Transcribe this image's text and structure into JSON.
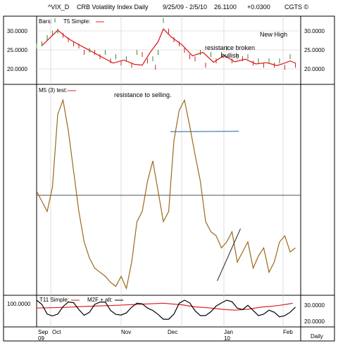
{
  "header": {
    "symbol": "^VIX_D",
    "title": "CRB Volatility Index Daily",
    "date_range": "9/25/09 - 2/5/10",
    "last": "26.1100",
    "change": "+0.0300",
    "source": "CGTS ©"
  },
  "colors": {
    "frame": "#000000",
    "grid": "#c8c8c8",
    "price_up": "#2e8b2e",
    "price_down": "#cc2222",
    "ma_line": "#e02020",
    "osc_line": "#9a6a1c",
    "osc_level": "#555555",
    "trend_line": "#222222",
    "resistance_line": "#1f5fa8"
  },
  "chart_data": [
    {
      "id": "price",
      "type": "line",
      "legend": [
        "Bars:",
        "T5 Simple:"
      ],
      "y_ticks": [
        "30.0000",
        "25.0000",
        "20.0000"
      ],
      "ylim": [
        16.5,
        32.5
      ],
      "xlim": [
        0,
        100
      ],
      "bars": [
        [
          0,
          25.5
        ],
        [
          2,
          26
        ],
        [
          4,
          27.5
        ],
        [
          6,
          28.5
        ],
        [
          8,
          29
        ],
        [
          10,
          28
        ],
        [
          12,
          27
        ],
        [
          14,
          26
        ],
        [
          16,
          25.5
        ],
        [
          18,
          24
        ],
        [
          20,
          24.5
        ],
        [
          22,
          24
        ],
        [
          24,
          23
        ],
        [
          26,
          24
        ],
        [
          28,
          22
        ],
        [
          30,
          23
        ],
        [
          32,
          21.5
        ],
        [
          34,
          22.5
        ],
        [
          36,
          21
        ],
        [
          38,
          24
        ],
        [
          40,
          23.5
        ],
        [
          42,
          22
        ],
        [
          44,
          22.5
        ],
        [
          45,
          20.5
        ],
        [
          46,
          24
        ],
        [
          48,
          31.5
        ],
        [
          50,
          29
        ],
        [
          52,
          27
        ],
        [
          54,
          26
        ],
        [
          56,
          24.5
        ],
        [
          58,
          23
        ],
        [
          60,
          22.5
        ],
        [
          62,
          24
        ],
        [
          64,
          21
        ],
        [
          66,
          23.5
        ],
        [
          68,
          22
        ],
        [
          70,
          23.5
        ],
        [
          72,
          25
        ],
        [
          74,
          22
        ],
        [
          76,
          23
        ],
        [
          78,
          22.5
        ],
        [
          80,
          23
        ],
        [
          82,
          21.5
        ],
        [
          84,
          22
        ],
        [
          86,
          21
        ],
        [
          88,
          22
        ],
        [
          90,
          21
        ],
        [
          92,
          22
        ],
        [
          94,
          20.5
        ],
        [
          96,
          23
        ],
        [
          98,
          21
        ]
      ],
      "ma": [
        [
          2,
          25.6
        ],
        [
          4,
          26.8
        ],
        [
          8,
          29.2
        ],
        [
          12,
          27.2
        ],
        [
          16,
          25.8
        ],
        [
          20,
          24.5
        ],
        [
          25,
          22.8
        ],
        [
          29,
          21.5
        ],
        [
          33,
          22.2
        ],
        [
          37,
          21.2
        ],
        [
          40,
          21
        ],
        [
          43,
          24
        ],
        [
          46,
          26.5
        ],
        [
          48,
          29.5
        ],
        [
          51,
          27.6
        ],
        [
          55,
          25.8
        ],
        [
          59,
          23.2
        ],
        [
          63,
          24
        ],
        [
          67,
          21.7
        ],
        [
          71,
          23.3
        ],
        [
          75,
          21.8
        ],
        [
          79,
          22.4
        ],
        [
          83,
          21.3
        ],
        [
          87,
          21.6
        ],
        [
          91,
          20.9
        ],
        [
          94,
          21.5
        ],
        [
          96,
          22
        ],
        [
          98,
          21.5
        ]
      ],
      "annotations": [
        "resistance broken",
        "bullish",
        "New High"
      ]
    },
    {
      "id": "oscillator",
      "type": "line",
      "legend": [
        "M5 (3) test:"
      ],
      "annotations": [
        "resistance to selling."
      ],
      "ylim": [
        0,
        100
      ],
      "level": 48,
      "values": [
        [
          0,
          50
        ],
        [
          2,
          45
        ],
        [
          4,
          40
        ],
        [
          6,
          52
        ],
        [
          8,
          88
        ],
        [
          10,
          95
        ],
        [
          12,
          80
        ],
        [
          14,
          60
        ],
        [
          16,
          40
        ],
        [
          18,
          25
        ],
        [
          20,
          17
        ],
        [
          22,
          12
        ],
        [
          24,
          10
        ],
        [
          26,
          8
        ],
        [
          28,
          5
        ],
        [
          30,
          3
        ],
        [
          32,
          8
        ],
        [
          34,
          2
        ],
        [
          36,
          15
        ],
        [
          38,
          35
        ],
        [
          40,
          40
        ],
        [
          42,
          55
        ],
        [
          44,
          65
        ],
        [
          46,
          50
        ],
        [
          48,
          35
        ],
        [
          50,
          40
        ],
        [
          52,
          75
        ],
        [
          54,
          90
        ],
        [
          56,
          95
        ],
        [
          58,
          82
        ],
        [
          60,
          68
        ],
        [
          62,
          55
        ],
        [
          64,
          35
        ],
        [
          66,
          30
        ],
        [
          68,
          28
        ],
        [
          70,
          22
        ],
        [
          72,
          25
        ],
        [
          74,
          30
        ],
        [
          76,
          15
        ],
        [
          78,
          20
        ],
        [
          80,
          25
        ],
        [
          82,
          12
        ],
        [
          84,
          18
        ],
        [
          86,
          22
        ],
        [
          88,
          10
        ],
        [
          90,
          15
        ],
        [
          92,
          25
        ],
        [
          94,
          28
        ],
        [
          96,
          20
        ],
        [
          98,
          22
        ]
      ],
      "trend_line": [
        [
          68.4,
          5.7
        ],
        [
          77.2,
          31.5
        ]
      ],
      "resistance_line": [
        [
          50.7,
          79.4
        ],
        [
          76.6,
          79.6
        ]
      ]
    },
    {
      "id": "t11",
      "type": "line",
      "legend": [
        "T11 Simple:",
        "M2F + alt:"
      ],
      "y_ticks_left": [
        "100.0000"
      ],
      "y_ticks_right": [
        "30.0000",
        "20.0000"
      ],
      "ylim": [
        0,
        100
      ],
      "x_labels": [
        "Sep",
        "Oct",
        "Nov",
        "Dec",
        "Jan",
        "Feb"
      ],
      "year_labels": [
        "09",
        "10"
      ],
      "period_label": "Daily",
      "t11_values": [
        [
          0,
          60
        ],
        [
          10,
          62
        ],
        [
          20,
          66
        ],
        [
          30,
          69
        ],
        [
          40,
          73
        ],
        [
          48,
          76
        ],
        [
          55,
          71
        ],
        [
          60,
          64
        ],
        [
          65,
          61
        ],
        [
          70,
          56
        ],
        [
          75,
          53
        ],
        [
          80,
          56
        ],
        [
          85,
          63
        ],
        [
          90,
          67
        ],
        [
          92,
          69
        ],
        [
          95,
          73
        ],
        [
          97,
          76
        ]
      ],
      "m2f_values": [
        [
          0,
          86
        ],
        [
          2,
          72
        ],
        [
          4,
          40
        ],
        [
          6,
          34
        ],
        [
          8,
          40
        ],
        [
          10,
          65
        ],
        [
          12,
          80
        ],
        [
          14,
          78
        ],
        [
          16,
          55
        ],
        [
          18,
          36
        ],
        [
          20,
          46
        ],
        [
          22,
          72
        ],
        [
          24,
          80
        ],
        [
          26,
          80
        ],
        [
          28,
          52
        ],
        [
          30,
          39
        ],
        [
          32,
          37
        ],
        [
          34,
          44
        ],
        [
          36,
          63
        ],
        [
          38,
          76
        ],
        [
          40,
          74
        ],
        [
          42,
          60
        ],
        [
          44,
          52
        ],
        [
          46,
          39
        ],
        [
          48,
          23
        ],
        [
          50,
          23
        ],
        [
          52,
          40
        ],
        [
          54,
          76
        ],
        [
          56,
          86
        ],
        [
          58,
          77
        ],
        [
          60,
          51
        ],
        [
          62,
          35
        ],
        [
          64,
          35
        ],
        [
          66,
          48
        ],
        [
          68,
          67
        ],
        [
          70,
          77
        ],
        [
          72,
          86
        ],
        [
          74,
          81
        ],
        [
          76,
          60
        ],
        [
          78,
          55
        ],
        [
          80,
          69
        ],
        [
          82,
          52
        ],
        [
          84,
          35
        ],
        [
          86,
          40
        ],
        [
          88,
          53
        ],
        [
          90,
          46
        ],
        [
          92,
          31
        ],
        [
          94,
          35
        ],
        [
          96,
          46
        ],
        [
          98,
          63
        ]
      ]
    }
  ]
}
